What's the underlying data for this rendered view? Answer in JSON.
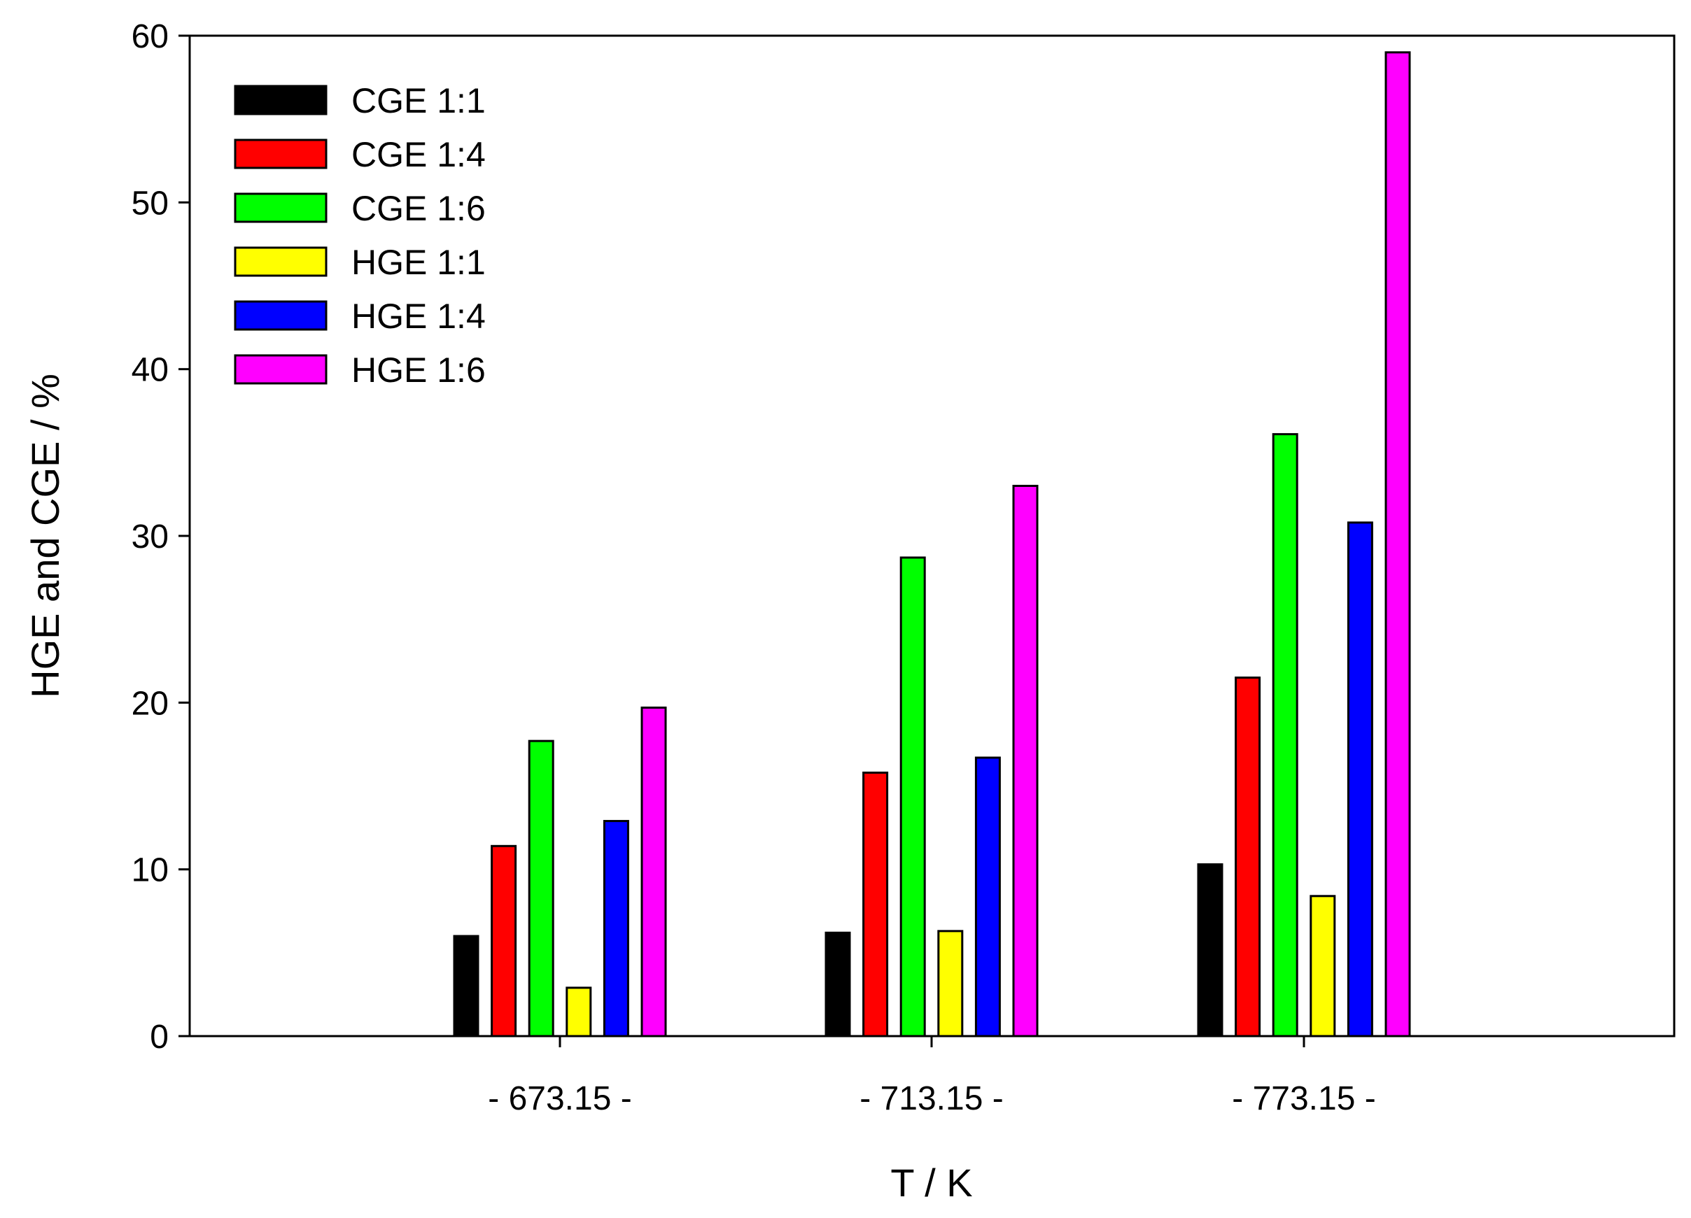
{
  "chart_data": {
    "type": "bar",
    "title": "",
    "xlabel": "T / K",
    "ylabel": "HGE and CGE / %",
    "ylim": [
      0,
      60
    ],
    "yticks": [
      "0",
      "10",
      "20",
      "30",
      "40",
      "50",
      "60"
    ],
    "categories": [
      "- 673.15 -",
      "- 713.15 -",
      "- 773.15 -"
    ],
    "grid": false,
    "legend_position": "top-left",
    "series": [
      {
        "name": "CGE 1:1",
        "color": "#000000",
        "values": [
          6.0,
          6.2,
          10.3
        ]
      },
      {
        "name": "CGE 1:4",
        "color": "#ff0000",
        "values": [
          11.4,
          15.8,
          21.5
        ]
      },
      {
        "name": "CGE 1:6",
        "color": "#00ff00",
        "values": [
          17.7,
          28.7,
          36.1
        ]
      },
      {
        "name": "HGE 1:1",
        "color": "#ffff00",
        "values": [
          2.9,
          6.3,
          8.4
        ]
      },
      {
        "name": "HGE 1:4",
        "color": "#0000ff",
        "values": [
          12.9,
          16.7,
          30.8
        ]
      },
      {
        "name": "HGE 1:6",
        "color": "#ff00ff",
        "values": [
          19.7,
          33.0,
          59.0
        ]
      }
    ]
  }
}
